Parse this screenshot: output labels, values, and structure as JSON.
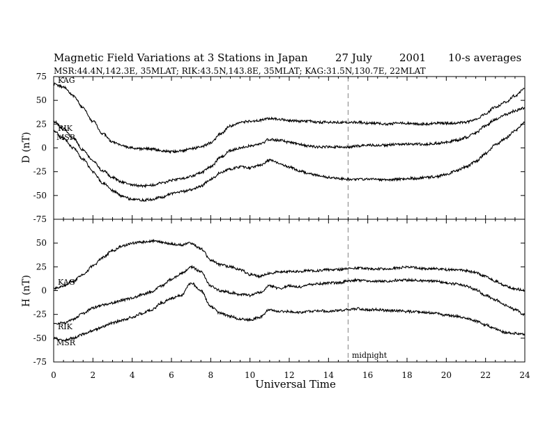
{
  "header": {
    "title": "Magnetic Field Variations at 3 Stations in Japan",
    "date_day": "27 July",
    "date_year": "2001",
    "averaging": "10-s averages",
    "stations_info": "MSR:44.4N,142.3E, 35MLAT;  RIK:43.5N,143.8E, 35MLAT;  KAG:31.5N,130.7E, 22MLAT"
  },
  "colors": {
    "trace": "#000000",
    "midnight_line": "#999999"
  },
  "chart_data": [
    {
      "type": "line",
      "panel": "top",
      "ylabel": "D (nT)",
      "xlabel": "",
      "xlim": [
        0,
        24
      ],
      "ylim": [
        -75,
        75
      ],
      "yticks": [
        75,
        50,
        25,
        0,
        -25,
        -50,
        -75
      ],
      "xticks": [
        0,
        2,
        4,
        6,
        8,
        10,
        12,
        14,
        16,
        18,
        20,
        22,
        24
      ],
      "grid": false,
      "series": [
        {
          "name": "KAG",
          "x": [
            0,
            0.5,
            1,
            1.5,
            2,
            2.5,
            3,
            3.5,
            4,
            4.5,
            5,
            5.5,
            6,
            6.5,
            7,
            7.5,
            8,
            8.5,
            9,
            9.5,
            10,
            10.5,
            11,
            11.5,
            12,
            12.5,
            13,
            13.5,
            14,
            14.5,
            15,
            15.5,
            16,
            16.5,
            17,
            17.5,
            18,
            18.5,
            19,
            19.5,
            20,
            20.5,
            21,
            21.5,
            22,
            22.5,
            23,
            23.5,
            24
          ],
          "values": [
            67,
            64,
            55,
            42,
            28,
            15,
            6,
            2,
            0,
            -1,
            -1,
            -3,
            -4,
            -3,
            -1,
            1,
            5,
            15,
            23,
            27,
            28,
            29,
            31,
            30,
            29,
            28,
            28,
            27,
            27,
            27,
            27,
            27,
            26,
            26,
            25,
            26,
            26,
            25,
            25,
            26,
            26,
            26,
            27,
            30,
            36,
            43,
            48,
            55,
            62
          ]
        },
        {
          "name": "RIK",
          "x": [
            0,
            0.5,
            1,
            1.5,
            2,
            2.5,
            3,
            3.5,
            4,
            4.5,
            5,
            5.5,
            6,
            6.5,
            7,
            7.5,
            8,
            8.5,
            9,
            9.5,
            10,
            10.5,
            11,
            11.5,
            12,
            12.5,
            13,
            13.5,
            14,
            14.5,
            15,
            15.5,
            16,
            16.5,
            17,
            17.5,
            18,
            18.5,
            19,
            19.5,
            20,
            20.5,
            21,
            21.5,
            22,
            22.5,
            23,
            23.5,
            24
          ],
          "values": [
            28,
            20,
            10,
            -2,
            -14,
            -24,
            -31,
            -36,
            -39,
            -40,
            -39,
            -37,
            -34,
            -32,
            -30,
            -26,
            -20,
            -10,
            -3,
            0,
            2,
            4,
            9,
            8,
            6,
            4,
            2,
            1,
            1,
            1,
            1,
            2,
            3,
            3,
            3,
            4,
            4,
            4,
            4,
            5,
            6,
            8,
            11,
            16,
            23,
            30,
            35,
            39,
            42
          ]
        },
        {
          "name": "MSR",
          "x": [
            0,
            0.5,
            1,
            1.5,
            2,
            2.5,
            3,
            3.5,
            4,
            4.5,
            5,
            5.5,
            6,
            6.5,
            7,
            7.5,
            8,
            8.5,
            9,
            9.5,
            10,
            10.5,
            11,
            11.5,
            12,
            12.5,
            13,
            13.5,
            14,
            14.5,
            15,
            15.5,
            16,
            16.5,
            17,
            17.5,
            18,
            18.5,
            19,
            19.5,
            20,
            20.5,
            21,
            21.5,
            22,
            22.5,
            23,
            23.5,
            24
          ],
          "values": [
            18,
            10,
            0,
            -12,
            -25,
            -37,
            -45,
            -51,
            -54,
            -55,
            -54,
            -52,
            -48,
            -46,
            -44,
            -40,
            -33,
            -26,
            -22,
            -20,
            -21,
            -18,
            -13,
            -16,
            -20,
            -24,
            -27,
            -29,
            -31,
            -32,
            -33,
            -33,
            -33,
            -33,
            -34,
            -33,
            -32,
            -32,
            -31,
            -30,
            -28,
            -24,
            -20,
            -14,
            -6,
            3,
            10,
            18,
            27
          ]
        }
      ]
    },
    {
      "type": "line",
      "panel": "bottom",
      "ylabel": "H (nT)",
      "xlabel": "Universal Time",
      "xlim": [
        0,
        24
      ],
      "ylim": [
        -75,
        75
      ],
      "yticks": [
        50,
        25,
        0,
        -25,
        -50,
        -75
      ],
      "xticks": [
        0,
        2,
        4,
        6,
        8,
        10,
        12,
        14,
        16,
        18,
        20,
        22,
        24
      ],
      "xticklabels": [
        "0",
        "2",
        "4",
        "6",
        "8",
        "10",
        "12",
        "14",
        "16",
        "18",
        "20",
        "22",
        "24"
      ],
      "grid": false,
      "annotations": [
        {
          "x": 15,
          "text": "midnight"
        }
      ],
      "series": [
        {
          "name": "KAG",
          "x": [
            0,
            0.5,
            1,
            1.5,
            2,
            2.5,
            3,
            3.5,
            4,
            4.5,
            5,
            5.5,
            6,
            6.5,
            7,
            7.5,
            8,
            8.5,
            9,
            9.5,
            10,
            10.5,
            11,
            11.5,
            12,
            12.5,
            13,
            13.5,
            14,
            14.5,
            15,
            15.5,
            16,
            16.5,
            17,
            17.5,
            18,
            18.5,
            19,
            19.5,
            20,
            20.5,
            21,
            21.5,
            22,
            22.5,
            23,
            23.5,
            24
          ],
          "values": [
            2,
            5,
            10,
            17,
            26,
            35,
            42,
            47,
            50,
            51,
            52,
            51,
            49,
            48,
            50,
            44,
            32,
            27,
            25,
            22,
            17,
            15,
            18,
            20,
            20,
            20,
            21,
            21,
            22,
            22,
            23,
            24,
            23,
            23,
            23,
            24,
            25,
            24,
            23,
            23,
            22,
            22,
            21,
            19,
            15,
            10,
            5,
            2,
            0
          ]
        },
        {
          "name": "RIK",
          "x": [
            0,
            0.5,
            1,
            1.5,
            2,
            2.5,
            3,
            3.5,
            4,
            4.5,
            5,
            5.5,
            6,
            6.5,
            7,
            7.5,
            8,
            8.5,
            9,
            9.5,
            10,
            10.5,
            11,
            11.5,
            12,
            12.5,
            13,
            13.5,
            14,
            14.5,
            15,
            15.5,
            16,
            16.5,
            17,
            17.5,
            18,
            18.5,
            19,
            19.5,
            20,
            20.5,
            21,
            21.5,
            22,
            22.5,
            23,
            23.5,
            24
          ],
          "values": [
            -35,
            -34,
            -30,
            -24,
            -18,
            -15,
            -13,
            -10,
            -8,
            -4,
            -1,
            5,
            12,
            18,
            25,
            20,
            5,
            0,
            -2,
            -4,
            -5,
            -2,
            5,
            2,
            5,
            4,
            6,
            7,
            8,
            8,
            10,
            11,
            10,
            10,
            10,
            11,
            11,
            11,
            10,
            10,
            8,
            7,
            5,
            1,
            -5,
            -10,
            -15,
            -20,
            -25
          ]
        },
        {
          "name": "MSR",
          "x": [
            0,
            0.5,
            1,
            1.5,
            2,
            2.5,
            3,
            3.5,
            4,
            4.5,
            5,
            5.5,
            6,
            6.5,
            7,
            7.5,
            8,
            8.5,
            9,
            9.5,
            10,
            10.5,
            11,
            11.5,
            12,
            12.5,
            13,
            13.5,
            14,
            14.5,
            15,
            15.5,
            16,
            16.5,
            17,
            17.5,
            18,
            18.5,
            19,
            19.5,
            20,
            20.5,
            21,
            21.5,
            22,
            22.5,
            23,
            23.5,
            24
          ],
          "values": [
            -50,
            -52,
            -50,
            -46,
            -42,
            -38,
            -34,
            -31,
            -28,
            -24,
            -20,
            -13,
            -8,
            -5,
            8,
            0,
            -17,
            -24,
            -27,
            -30,
            -31,
            -28,
            -20,
            -22,
            -22,
            -23,
            -22,
            -21,
            -22,
            -21,
            -20,
            -19,
            -20,
            -20,
            -21,
            -21,
            -22,
            -22,
            -23,
            -24,
            -26,
            -27,
            -29,
            -32,
            -36,
            -40,
            -44,
            -45,
            -46
          ]
        }
      ]
    }
  ]
}
